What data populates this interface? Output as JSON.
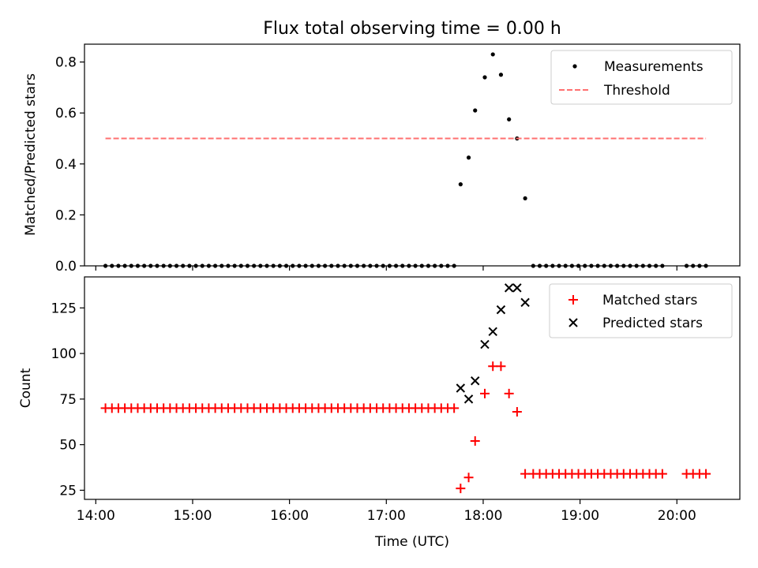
{
  "figure": {
    "title": "Flux total observing time = 0.00 h"
  },
  "chart_data": [
    {
      "type": "scatter",
      "panel": "top",
      "ylabel": "Matched/Predicted stars",
      "xlabel": "",
      "xlim": [
        "13:53",
        "20:39"
      ],
      "ylim": [
        0,
        0.87
      ],
      "yticks": [
        0.0,
        0.2,
        0.4,
        0.6,
        0.8
      ],
      "ytick_labels": [
        "0.0",
        "0.2",
        "0.4",
        "0.6",
        "0.8"
      ],
      "grid": false,
      "legend": "top-right",
      "series": [
        {
          "name": "Measurements",
          "kind": "scatter",
          "marker": "dot",
          "color": "#000000",
          "x": [
            "14:06",
            "14:10",
            "14:14",
            "14:18",
            "14:22",
            "14:26",
            "14:30",
            "14:34",
            "14:38",
            "14:42",
            "14:46",
            "14:50",
            "14:54",
            "14:58",
            "15:02",
            "15:06",
            "15:10",
            "15:14",
            "15:18",
            "15:22",
            "15:26",
            "15:30",
            "15:34",
            "15:38",
            "15:42",
            "15:46",
            "15:50",
            "15:54",
            "15:58",
            "16:02",
            "16:06",
            "16:10",
            "16:14",
            "16:18",
            "16:22",
            "16:26",
            "16:30",
            "16:34",
            "16:38",
            "16:42",
            "16:46",
            "16:50",
            "16:54",
            "16:58",
            "17:02",
            "17:06",
            "17:10",
            "17:14",
            "17:18",
            "17:22",
            "17:26",
            "17:30",
            "17:34",
            "17:38",
            "17:42",
            "17:46",
            "17:51",
            "17:55",
            "18:01",
            "18:06",
            "18:11",
            "18:16",
            "18:21",
            "18:26",
            "18:31",
            "18:35",
            "18:39",
            "18:43",
            "18:47",
            "18:51",
            "18:55",
            "18:59",
            "19:03",
            "19:07",
            "19:11",
            "19:15",
            "19:19",
            "19:23",
            "19:27",
            "19:31",
            "19:35",
            "19:39",
            "19:43",
            "19:47",
            "19:51",
            "20:06",
            "20:10",
            "20:14",
            "20:18"
          ],
          "y": [
            0,
            0,
            0,
            0,
            0,
            0,
            0,
            0,
            0,
            0,
            0,
            0,
            0,
            0,
            0,
            0,
            0,
            0,
            0,
            0,
            0,
            0,
            0,
            0,
            0,
            0,
            0,
            0,
            0,
            0,
            0,
            0,
            0,
            0,
            0,
            0,
            0,
            0,
            0,
            0,
            0,
            0,
            0,
            0,
            0,
            0,
            0,
            0,
            0,
            0,
            0,
            0,
            0,
            0,
            0,
            0.32,
            0.425,
            0.61,
            0.74,
            0.83,
            0.75,
            0.575,
            0.5,
            0.265,
            0,
            0,
            0,
            0,
            0,
            0,
            0,
            0,
            0,
            0,
            0,
            0,
            0,
            0,
            0,
            0,
            0,
            0,
            0,
            0,
            0,
            0,
            0,
            0,
            0
          ]
        },
        {
          "name": "Threshold",
          "kind": "line",
          "dash": true,
          "color": "#ff7070",
          "x": [
            "14:06",
            "20:18"
          ],
          "y": [
            0.5,
            0.5
          ]
        }
      ]
    },
    {
      "type": "scatter",
      "panel": "bottom",
      "ylabel": "Count",
      "xlabel": "Time (UTC)",
      "xlim": [
        "13:53",
        "20:39"
      ],
      "ylim": [
        20,
        142
      ],
      "yticks": [
        25,
        50,
        75,
        100,
        125
      ],
      "ytick_labels": [
        "25",
        "50",
        "75",
        "100",
        "125"
      ],
      "xticks": [
        "14:00",
        "15:00",
        "16:00",
        "17:00",
        "18:00",
        "19:00",
        "20:00"
      ],
      "xtick_labels": [
        "14:00",
        "15:00",
        "16:00",
        "17:00",
        "18:00",
        "19:00",
        "20:00"
      ],
      "grid": false,
      "legend": "top-right",
      "series": [
        {
          "name": "Matched stars",
          "kind": "scatter",
          "marker": "plus",
          "color": "#ff0000",
          "x": [
            "14:06",
            "14:10",
            "14:14",
            "14:18",
            "14:22",
            "14:26",
            "14:30",
            "14:34",
            "14:38",
            "14:42",
            "14:46",
            "14:50",
            "14:54",
            "14:58",
            "15:02",
            "15:06",
            "15:10",
            "15:14",
            "15:18",
            "15:22",
            "15:26",
            "15:30",
            "15:34",
            "15:38",
            "15:42",
            "15:46",
            "15:50",
            "15:54",
            "15:58",
            "16:02",
            "16:06",
            "16:10",
            "16:14",
            "16:18",
            "16:22",
            "16:26",
            "16:30",
            "16:34",
            "16:38",
            "16:42",
            "16:46",
            "16:50",
            "16:54",
            "16:58",
            "17:02",
            "17:06",
            "17:10",
            "17:14",
            "17:18",
            "17:22",
            "17:26",
            "17:30",
            "17:34",
            "17:38",
            "17:42",
            "17:46",
            "17:51",
            "17:55",
            "18:01",
            "18:06",
            "18:11",
            "18:16",
            "18:21",
            "18:26",
            "18:31",
            "18:35",
            "18:39",
            "18:43",
            "18:47",
            "18:51",
            "18:55",
            "18:59",
            "19:03",
            "19:07",
            "19:11",
            "19:15",
            "19:19",
            "19:23",
            "19:27",
            "19:31",
            "19:35",
            "19:39",
            "19:43",
            "19:47",
            "19:51",
            "20:06",
            "20:10",
            "20:14",
            "20:18"
          ],
          "y": [
            70,
            70,
            70,
            70,
            70,
            70,
            70,
            70,
            70,
            70,
            70,
            70,
            70,
            70,
            70,
            70,
            70,
            70,
            70,
            70,
            70,
            70,
            70,
            70,
            70,
            70,
            70,
            70,
            70,
            70,
            70,
            70,
            70,
            70,
            70,
            70,
            70,
            70,
            70,
            70,
            70,
            70,
            70,
            70,
            70,
            70,
            70,
            70,
            70,
            70,
            70,
            70,
            70,
            70,
            70,
            26,
            32,
            52,
            78,
            93,
            93,
            78,
            68,
            34,
            34,
            34,
            34,
            34,
            34,
            34,
            34,
            34,
            34,
            34,
            34,
            34,
            34,
            34,
            34,
            34,
            34,
            34,
            34,
            34,
            34,
            34,
            34,
            34,
            34
          ]
        },
        {
          "name": "Predicted stars",
          "kind": "scatter",
          "marker": "x",
          "color": "#000000",
          "x": [
            "17:46",
            "17:51",
            "17:55",
            "18:01",
            "18:06",
            "18:11",
            "18:16",
            "18:21",
            "18:26"
          ],
          "y": [
            81,
            75,
            85,
            105,
            112,
            124,
            136,
            136,
            128
          ]
        }
      ]
    }
  ]
}
